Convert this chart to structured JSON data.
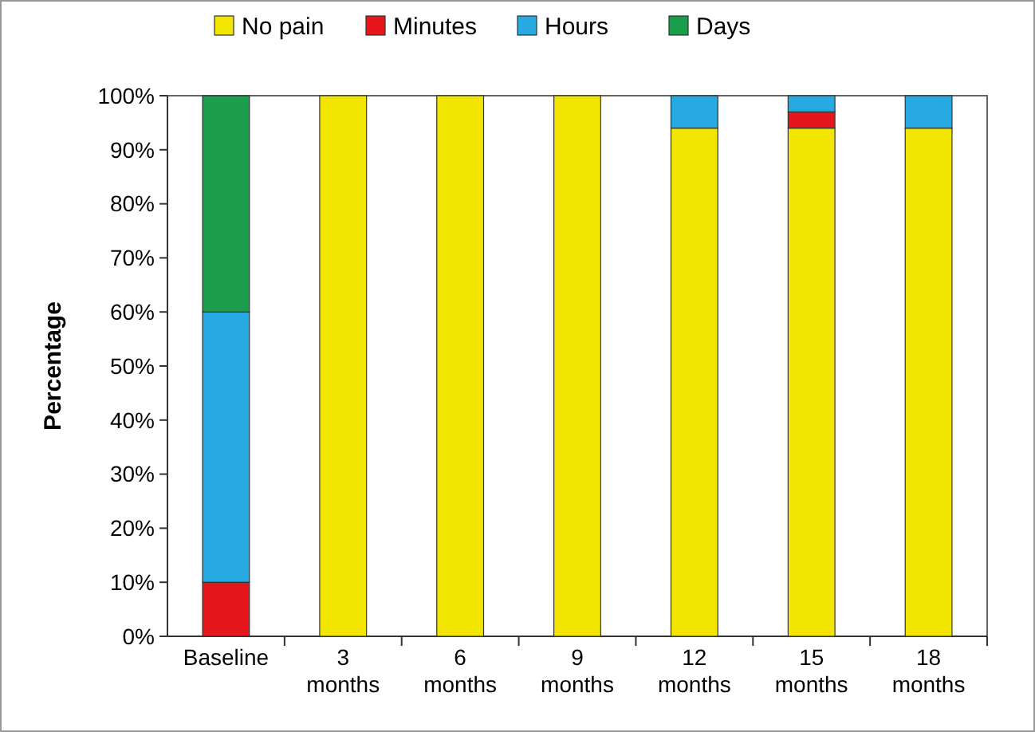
{
  "chart_data": {
    "type": "bar",
    "stacked": true,
    "ylabel": "Percentage",
    "categories": [
      "Baseline",
      "3 months",
      "6 months",
      "9 months",
      "12 months",
      "15 months",
      "18 months"
    ],
    "series": [
      {
        "name": "No pain",
        "color": "#f2e600",
        "values": [
          0,
          100,
          100,
          100,
          94,
          94,
          94
        ]
      },
      {
        "name": "Minutes",
        "color": "#e5171c",
        "values": [
          10,
          0,
          0,
          0,
          0,
          3,
          0
        ]
      },
      {
        "name": "Hours",
        "color": "#27a9e1",
        "values": [
          50,
          0,
          0,
          0,
          6,
          3,
          6
        ]
      },
      {
        "name": "Days",
        "color": "#1b9e4b",
        "values": [
          40,
          0,
          0,
          0,
          0,
          0,
          0
        ]
      }
    ],
    "ylim": [
      0,
      100
    ],
    "yticks": [
      {
        "value": 0,
        "label": "0%"
      },
      {
        "value": 10,
        "label": "10%"
      },
      {
        "value": 20,
        "label": "20%"
      },
      {
        "value": 30,
        "label": "30%"
      },
      {
        "value": 40,
        "label": "40%"
      },
      {
        "value": 50,
        "label": "50%"
      },
      {
        "value": 60,
        "label": "60%"
      },
      {
        "value": 70,
        "label": "70%"
      },
      {
        "value": 80,
        "label": "80%"
      },
      {
        "value": 90,
        "label": "90%"
      },
      {
        "value": 100,
        "label": "100%"
      }
    ],
    "legend": "top",
    "grid": false
  }
}
